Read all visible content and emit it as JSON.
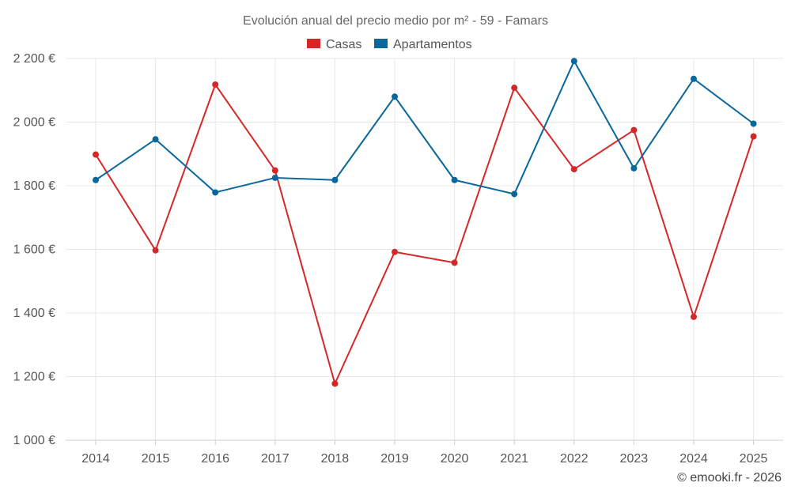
{
  "chart_data": {
    "type": "line",
    "title": "Evolución anual del precio medio por m² - 59 - Famars",
    "categories": [
      "2014",
      "2015",
      "2016",
      "2017",
      "2018",
      "2019",
      "2020",
      "2021",
      "2022",
      "2023",
      "2024",
      "2025"
    ],
    "series": [
      {
        "name": "Casas",
        "color": "#d62728",
        "values": [
          1898,
          1597,
          2118,
          1848,
          1178,
          1592,
          1558,
          2108,
          1852,
          1975,
          1388,
          1955
        ]
      },
      {
        "name": "Apartamentos",
        "color": "#08679c",
        "values": [
          1818,
          1946,
          1779,
          1825,
          1818,
          2080,
          1818,
          1774,
          2192,
          1855,
          2136,
          1995
        ]
      }
    ],
    "ylim": [
      1000,
      2200
    ],
    "yticks": [
      1000,
      1200,
      1400,
      1600,
      1800,
      2000,
      2200
    ],
    "ytick_labels": [
      "1 000 €",
      "1 200 €",
      "1 400 €",
      "1 600 €",
      "1 800 €",
      "2 000 €",
      "2 200 €"
    ],
    "xlabel": "",
    "ylabel": "",
    "legend_position": "top-center",
    "grid": true
  },
  "credit": "© emooki.fr - 2026"
}
